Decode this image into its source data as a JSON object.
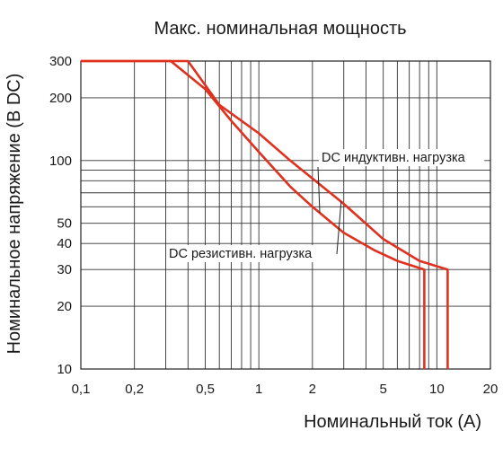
{
  "chart_data": {
    "type": "line",
    "title": "Макс. номинальная мощность",
    "xlabel": "Номинальный ток (А)",
    "ylabel": "Номинальное напряжение (В DC)",
    "x_scale": "log",
    "y_scale": "log",
    "xlim": [
      0.1,
      20
    ],
    "ylim": [
      10,
      300
    ],
    "grid": true,
    "x_ticks": [
      {
        "value": 0.1,
        "label": "0,1"
      },
      {
        "value": 0.2,
        "label": "0,2"
      },
      {
        "value": 0.5,
        "label": "0,5"
      },
      {
        "value": 1,
        "label": "1"
      },
      {
        "value": 2,
        "label": "2"
      },
      {
        "value": 5,
        "label": "5"
      },
      {
        "value": 10,
        "label": "10"
      },
      {
        "value": 20,
        "label": "20"
      }
    ],
    "y_ticks": [
      {
        "value": 10,
        "label": "10"
      },
      {
        "value": 20,
        "label": "20"
      },
      {
        "value": 30,
        "label": "30"
      },
      {
        "value": 40,
        "label": "40"
      },
      {
        "value": 50,
        "label": "50"
      },
      {
        "value": 100,
        "label": "100"
      },
      {
        "value": 200,
        "label": "200"
      },
      {
        "value": 300,
        "label": "300"
      }
    ],
    "x_grid": [
      0.1,
      0.2,
      0.3,
      0.4,
      0.5,
      0.6,
      0.7,
      0.8,
      0.9,
      1,
      2,
      3,
      4,
      5,
      6,
      7,
      8,
      9,
      10,
      20
    ],
    "y_grid": [
      10,
      20,
      30,
      40,
      50,
      60,
      70,
      80,
      90,
      100,
      200,
      300
    ],
    "line_color": "#e0301e",
    "series": [
      {
        "name": "DC индуктивн. нагрузка",
        "points": [
          [
            0.1,
            300
          ],
          [
            0.32,
            300
          ],
          [
            0.5,
            220
          ],
          [
            0.7,
            155
          ],
          [
            1,
            110
          ],
          [
            1.5,
            75
          ],
          [
            2,
            60
          ],
          [
            3,
            45
          ],
          [
            4.5,
            37
          ],
          [
            6,
            33
          ],
          [
            8.5,
            30
          ],
          [
            8.5,
            10
          ]
        ]
      },
      {
        "name": "DC резистивн. нагрузка",
        "points": [
          [
            0.1,
            300
          ],
          [
            0.4,
            300
          ],
          [
            0.6,
            185
          ],
          [
            1,
            135
          ],
          [
            1.5,
            100
          ],
          [
            2,
            82
          ],
          [
            3,
            62
          ],
          [
            5,
            42
          ],
          [
            8,
            33
          ],
          [
            11.5,
            30
          ],
          [
            11.5,
            10
          ]
        ]
      }
    ],
    "annotations": [
      {
        "text": "DC индуктивн. нагрузка",
        "series": 0
      },
      {
        "text": "DC резистивн. нагрузка",
        "series": 1
      }
    ]
  }
}
